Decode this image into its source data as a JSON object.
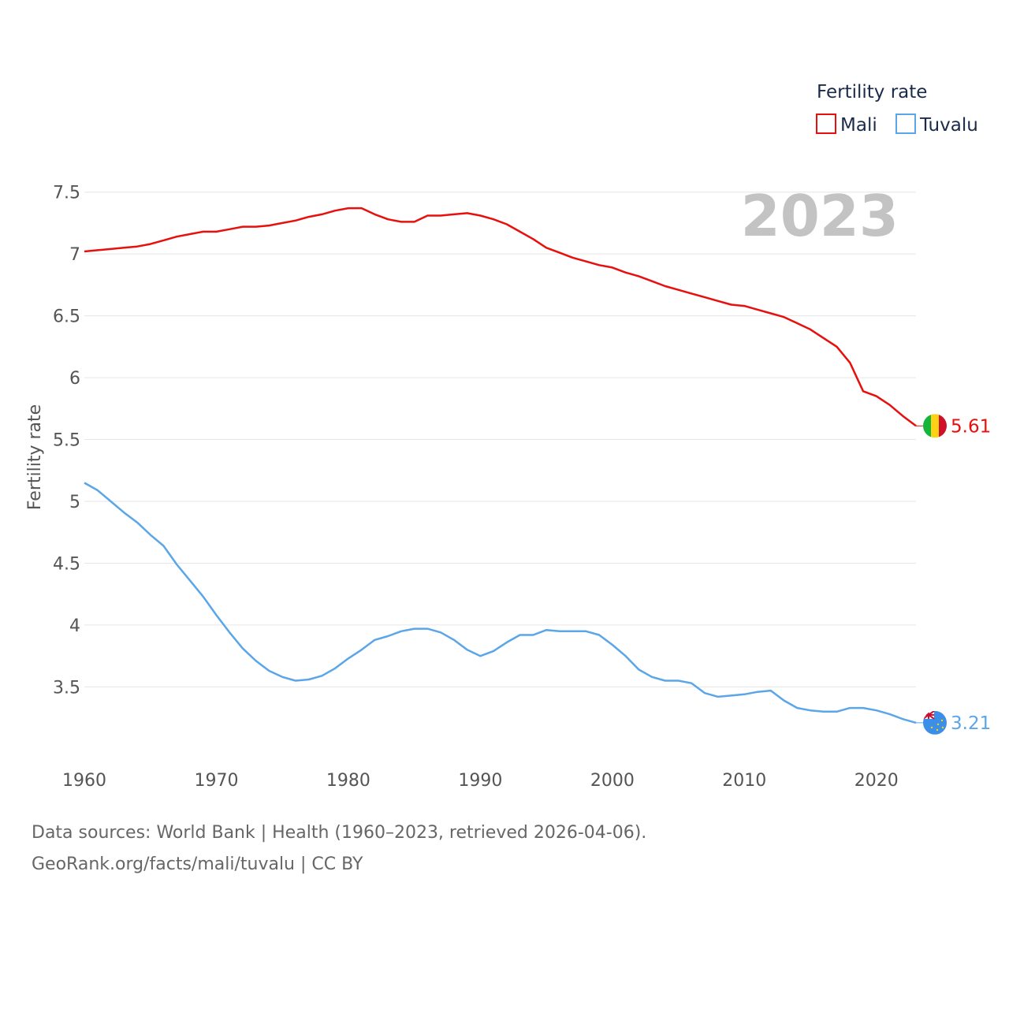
{
  "colors": {
    "mali": "#e8100c",
    "tuvalu": "#5aa6e8",
    "grid": "#e6e6e6",
    "axis_text": "#555555"
  },
  "chart_data": {
    "type": "line",
    "title": "",
    "xlabel": "",
    "ylabel": "Fertility rate",
    "xlim": [
      1960,
      2023
    ],
    "ylim": [
      3.05,
      7.6
    ],
    "x_ticks": [
      1960,
      1970,
      1980,
      1990,
      2000,
      2010,
      2020
    ],
    "y_ticks": [
      3.5,
      4,
      4.5,
      5,
      5.5,
      6,
      6.5,
      7,
      7.5
    ],
    "y_tick_labels": [
      "3.5",
      "4",
      "4.5",
      "5",
      "5.5",
      "6",
      "6.5",
      "7",
      "7.5"
    ],
    "current_year": "2023",
    "legend": {
      "title": "Fertility rate",
      "position": "top-right"
    },
    "series": [
      {
        "name": "Mali",
        "color": "#e8100c",
        "end_label": "5.61",
        "flag_icon": "mali-flag-icon",
        "x": [
          1960,
          1961,
          1962,
          1963,
          1964,
          1965,
          1966,
          1967,
          1968,
          1969,
          1970,
          1971,
          1972,
          1973,
          1974,
          1975,
          1976,
          1977,
          1978,
          1979,
          1980,
          1981,
          1982,
          1983,
          1984,
          1985,
          1986,
          1987,
          1988,
          1989,
          1990,
          1991,
          1992,
          1993,
          1994,
          1995,
          1996,
          1997,
          1998,
          1999,
          2000,
          2001,
          2002,
          2003,
          2004,
          2005,
          2006,
          2007,
          2008,
          2009,
          2010,
          2011,
          2012,
          2013,
          2014,
          2015,
          2016,
          2017,
          2018,
          2019,
          2020,
          2021,
          2022,
          2023
        ],
        "values": [
          7.02,
          7.03,
          7.04,
          7.05,
          7.06,
          7.08,
          7.11,
          7.14,
          7.16,
          7.18,
          7.18,
          7.2,
          7.22,
          7.22,
          7.23,
          7.25,
          7.27,
          7.3,
          7.32,
          7.35,
          7.37,
          7.37,
          7.32,
          7.28,
          7.26,
          7.26,
          7.31,
          7.31,
          7.32,
          7.33,
          7.31,
          7.28,
          7.24,
          7.18,
          7.12,
          7.05,
          7.01,
          6.97,
          6.94,
          6.91,
          6.89,
          6.85,
          6.82,
          6.78,
          6.74,
          6.71,
          6.68,
          6.65,
          6.62,
          6.59,
          6.58,
          6.55,
          6.52,
          6.49,
          6.44,
          6.39,
          6.32,
          6.25,
          6.12,
          5.89,
          5.85,
          5.78,
          5.69,
          5.61
        ]
      },
      {
        "name": "Tuvalu",
        "color": "#5aa6e8",
        "end_label": "3.21",
        "flag_icon": "tuvalu-flag-icon",
        "x": [
          1960,
          1961,
          1962,
          1963,
          1964,
          1965,
          1966,
          1967,
          1968,
          1969,
          1970,
          1971,
          1972,
          1973,
          1974,
          1975,
          1976,
          1977,
          1978,
          1979,
          1980,
          1981,
          1982,
          1983,
          1984,
          1985,
          1986,
          1987,
          1988,
          1989,
          1990,
          1991,
          1992,
          1993,
          1994,
          1995,
          1996,
          1997,
          1998,
          1999,
          2000,
          2001,
          2002,
          2003,
          2004,
          2005,
          2006,
          2007,
          2008,
          2009,
          2010,
          2011,
          2012,
          2013,
          2014,
          2015,
          2016,
          2017,
          2018,
          2019,
          2020,
          2021,
          2022,
          2023
        ],
        "values": [
          5.15,
          5.09,
          5.0,
          4.91,
          4.83,
          4.73,
          4.64,
          4.49,
          4.36,
          4.23,
          4.08,
          3.94,
          3.81,
          3.71,
          3.63,
          3.58,
          3.55,
          3.56,
          3.59,
          3.65,
          3.73,
          3.8,
          3.88,
          3.91,
          3.95,
          3.97,
          3.97,
          3.94,
          3.88,
          3.8,
          3.75,
          3.79,
          3.86,
          3.92,
          3.92,
          3.96,
          3.95,
          3.95,
          3.95,
          3.92,
          3.84,
          3.75,
          3.64,
          3.58,
          3.55,
          3.55,
          3.53,
          3.45,
          3.42,
          3.43,
          3.44,
          3.46,
          3.47,
          3.39,
          3.33,
          3.31,
          3.3,
          3.3,
          3.33,
          3.33,
          3.31,
          3.28,
          3.24,
          3.21
        ]
      }
    ]
  },
  "footer": {
    "line1": "Data sources: World Bank | Health (1960–2023, retrieved 2026-04-06).",
    "line2": "GeoRank.org/facts/mali/tuvalu | CC BY"
  }
}
